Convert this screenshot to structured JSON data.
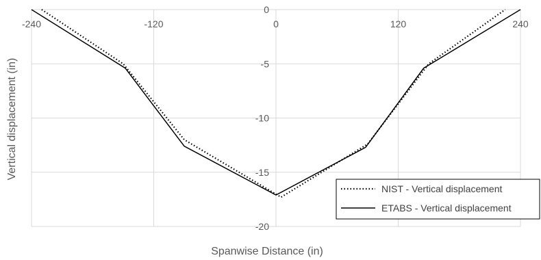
{
  "chart_data": {
    "type": "line",
    "xlabel": "Spanwise Distance (in)",
    "ylabel": "Vertical displacement (in)",
    "xlim": [
      -240,
      240
    ],
    "ylim": [
      -20,
      0
    ],
    "x_ticks": [
      -240,
      -120,
      0,
      120,
      240
    ],
    "y_ticks": [
      0,
      -5,
      -10,
      -15,
      -20
    ],
    "x_tick_labels": [
      "-240",
      "-120",
      "0",
      "120",
      "240"
    ],
    "y_tick_labels": [
      "0",
      "-5",
      "-10",
      "-15",
      "-20"
    ],
    "grid": true,
    "legend_position": "bottom-right",
    "series": [
      {
        "name": "NIST - Vertical displacement",
        "style": "dotted",
        "color": "#000000",
        "x": [
          -230,
          -150,
          -90,
          5,
          90,
          150,
          225
        ],
        "y": [
          0,
          -5,
          -12,
          -17.3,
          -12.4,
          -5,
          0
        ]
      },
      {
        "name": "ETABS - Vertical displacement",
        "style": "solid",
        "color": "#000000",
        "x": [
          -240,
          -148,
          -90,
          0,
          88,
          145,
          240
        ],
        "y": [
          0,
          -5.4,
          -12.6,
          -17.1,
          -12.7,
          -5.4,
          0
        ]
      }
    ]
  }
}
